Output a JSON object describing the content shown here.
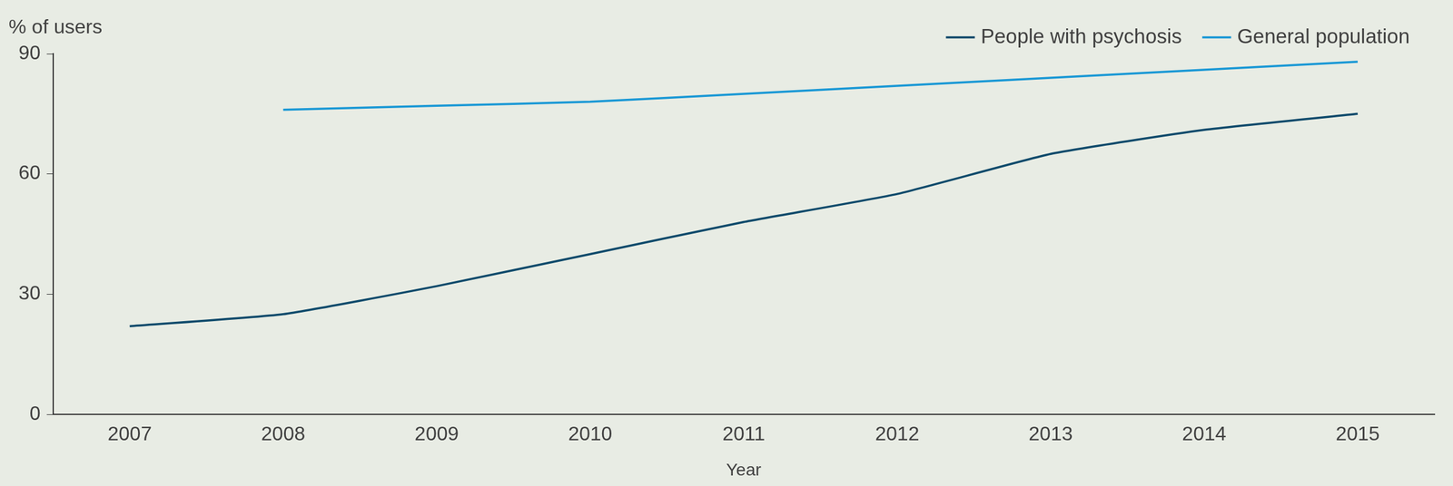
{
  "chart_data": {
    "type": "line",
    "y_label": "% of users",
    "x_label": "Year",
    "categories": [
      "2007",
      "2008",
      "2009",
      "2010",
      "2011",
      "2012",
      "2013",
      "2014",
      "2015"
    ],
    "series": [
      {
        "name": "People with psychosis",
        "color": "#0d4a6b",
        "values": [
          22,
          25,
          32,
          40,
          48,
          55,
          65,
          71,
          75
        ]
      },
      {
        "name": "General population",
        "color": "#1a98d5",
        "values": [
          null,
          76,
          77,
          78,
          80,
          82,
          84,
          86,
          88
        ]
      }
    ],
    "ylim": [
      0,
      90
    ],
    "yticks": [
      0,
      30,
      60,
      90
    ],
    "grid": false,
    "legend": "top-right"
  }
}
